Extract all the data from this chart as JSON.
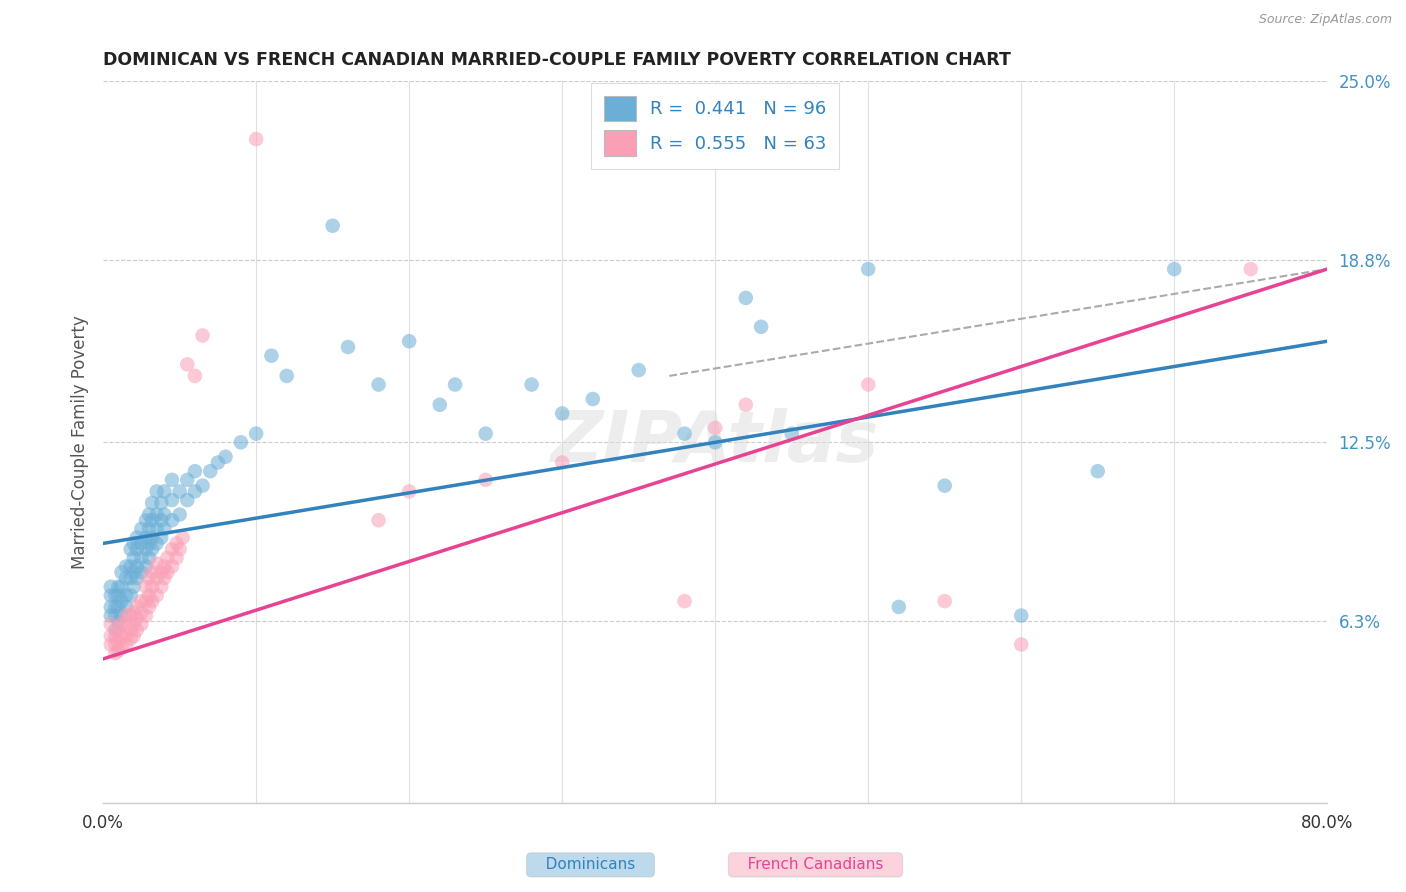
{
  "title": "DOMINICAN VS FRENCH CANADIAN MARRIED-COUPLE FAMILY POVERTY CORRELATION CHART",
  "source": "Source: ZipAtlas.com",
  "ylabel": "Married-Couple Family Poverty",
  "xlim": [
    0,
    0.8
  ],
  "ylim": [
    0,
    0.25
  ],
  "ytick_positions": [
    0.0,
    0.063,
    0.125,
    0.188,
    0.25
  ],
  "ytick_labels": [
    "",
    "6.3%",
    "12.5%",
    "18.8%",
    "25.0%"
  ],
  "dominican_color": "#6baed6",
  "french_color": "#fa9fb5",
  "dominican_line_color": "#3182bd",
  "french_line_color": "#e84393",
  "watermark": "ZIPAtlas",
  "legend_label1": "Dominicans",
  "legend_label2": "French Canadians",
  "dominican_scatter": [
    [
      0.005,
      0.065
    ],
    [
      0.005,
      0.068
    ],
    [
      0.005,
      0.072
    ],
    [
      0.005,
      0.075
    ],
    [
      0.008,
      0.06
    ],
    [
      0.008,
      0.065
    ],
    [
      0.008,
      0.068
    ],
    [
      0.008,
      0.072
    ],
    [
      0.01,
      0.063
    ],
    [
      0.01,
      0.068
    ],
    [
      0.01,
      0.072
    ],
    [
      0.01,
      0.075
    ],
    [
      0.012,
      0.065
    ],
    [
      0.012,
      0.07
    ],
    [
      0.012,
      0.075
    ],
    [
      0.012,
      0.08
    ],
    [
      0.015,
      0.068
    ],
    [
      0.015,
      0.072
    ],
    [
      0.015,
      0.078
    ],
    [
      0.015,
      0.082
    ],
    [
      0.018,
      0.072
    ],
    [
      0.018,
      0.078
    ],
    [
      0.018,
      0.082
    ],
    [
      0.018,
      0.088
    ],
    [
      0.02,
      0.075
    ],
    [
      0.02,
      0.08
    ],
    [
      0.02,
      0.085
    ],
    [
      0.02,
      0.09
    ],
    [
      0.022,
      0.078
    ],
    [
      0.022,
      0.082
    ],
    [
      0.022,
      0.088
    ],
    [
      0.022,
      0.092
    ],
    [
      0.025,
      0.08
    ],
    [
      0.025,
      0.085
    ],
    [
      0.025,
      0.09
    ],
    [
      0.025,
      0.095
    ],
    [
      0.028,
      0.082
    ],
    [
      0.028,
      0.088
    ],
    [
      0.028,
      0.092
    ],
    [
      0.028,
      0.098
    ],
    [
      0.03,
      0.085
    ],
    [
      0.03,
      0.09
    ],
    [
      0.03,
      0.095
    ],
    [
      0.03,
      0.1
    ],
    [
      0.032,
      0.088
    ],
    [
      0.032,
      0.092
    ],
    [
      0.032,
      0.098
    ],
    [
      0.032,
      0.104
    ],
    [
      0.035,
      0.09
    ],
    [
      0.035,
      0.095
    ],
    [
      0.035,
      0.1
    ],
    [
      0.035,
      0.108
    ],
    [
      0.038,
      0.092
    ],
    [
      0.038,
      0.098
    ],
    [
      0.038,
      0.104
    ],
    [
      0.04,
      0.095
    ],
    [
      0.04,
      0.1
    ],
    [
      0.04,
      0.108
    ],
    [
      0.045,
      0.098
    ],
    [
      0.045,
      0.105
    ],
    [
      0.045,
      0.112
    ],
    [
      0.05,
      0.1
    ],
    [
      0.05,
      0.108
    ],
    [
      0.055,
      0.105
    ],
    [
      0.055,
      0.112
    ],
    [
      0.06,
      0.108
    ],
    [
      0.06,
      0.115
    ],
    [
      0.065,
      0.11
    ],
    [
      0.07,
      0.115
    ],
    [
      0.075,
      0.118
    ],
    [
      0.08,
      0.12
    ],
    [
      0.09,
      0.125
    ],
    [
      0.1,
      0.128
    ],
    [
      0.11,
      0.155
    ],
    [
      0.12,
      0.148
    ],
    [
      0.15,
      0.2
    ],
    [
      0.16,
      0.158
    ],
    [
      0.18,
      0.145
    ],
    [
      0.2,
      0.16
    ],
    [
      0.22,
      0.138
    ],
    [
      0.23,
      0.145
    ],
    [
      0.25,
      0.128
    ],
    [
      0.28,
      0.145
    ],
    [
      0.3,
      0.135
    ],
    [
      0.32,
      0.14
    ],
    [
      0.35,
      0.15
    ],
    [
      0.38,
      0.128
    ],
    [
      0.4,
      0.125
    ],
    [
      0.42,
      0.175
    ],
    [
      0.43,
      0.165
    ],
    [
      0.45,
      0.128
    ],
    [
      0.5,
      0.185
    ],
    [
      0.52,
      0.068
    ],
    [
      0.55,
      0.11
    ],
    [
      0.6,
      0.065
    ],
    [
      0.65,
      0.115
    ],
    [
      0.7,
      0.185
    ]
  ],
  "french_scatter": [
    [
      0.005,
      0.055
    ],
    [
      0.005,
      0.058
    ],
    [
      0.005,
      0.062
    ],
    [
      0.008,
      0.052
    ],
    [
      0.008,
      0.055
    ],
    [
      0.008,
      0.058
    ],
    [
      0.01,
      0.053
    ],
    [
      0.01,
      0.056
    ],
    [
      0.01,
      0.06
    ],
    [
      0.012,
      0.054
    ],
    [
      0.012,
      0.058
    ],
    [
      0.012,
      0.062
    ],
    [
      0.015,
      0.055
    ],
    [
      0.015,
      0.058
    ],
    [
      0.015,
      0.062
    ],
    [
      0.015,
      0.065
    ],
    [
      0.018,
      0.057
    ],
    [
      0.018,
      0.06
    ],
    [
      0.018,
      0.065
    ],
    [
      0.02,
      0.058
    ],
    [
      0.02,
      0.062
    ],
    [
      0.02,
      0.066
    ],
    [
      0.022,
      0.06
    ],
    [
      0.022,
      0.064
    ],
    [
      0.022,
      0.068
    ],
    [
      0.025,
      0.062
    ],
    [
      0.025,
      0.066
    ],
    [
      0.025,
      0.07
    ],
    [
      0.028,
      0.065
    ],
    [
      0.028,
      0.07
    ],
    [
      0.028,
      0.075
    ],
    [
      0.03,
      0.068
    ],
    [
      0.03,
      0.072
    ],
    [
      0.03,
      0.078
    ],
    [
      0.032,
      0.07
    ],
    [
      0.032,
      0.075
    ],
    [
      0.032,
      0.08
    ],
    [
      0.035,
      0.072
    ],
    [
      0.035,
      0.078
    ],
    [
      0.035,
      0.083
    ],
    [
      0.038,
      0.075
    ],
    [
      0.038,
      0.08
    ],
    [
      0.04,
      0.078
    ],
    [
      0.04,
      0.082
    ],
    [
      0.042,
      0.08
    ],
    [
      0.042,
      0.085
    ],
    [
      0.045,
      0.082
    ],
    [
      0.045,
      0.088
    ],
    [
      0.048,
      0.085
    ],
    [
      0.048,
      0.09
    ],
    [
      0.05,
      0.088
    ],
    [
      0.052,
      0.092
    ],
    [
      0.055,
      0.152
    ],
    [
      0.06,
      0.148
    ],
    [
      0.065,
      0.162
    ],
    [
      0.1,
      0.23
    ],
    [
      0.18,
      0.098
    ],
    [
      0.2,
      0.108
    ],
    [
      0.25,
      0.112
    ],
    [
      0.3,
      0.118
    ],
    [
      0.38,
      0.07
    ],
    [
      0.4,
      0.13
    ],
    [
      0.42,
      0.138
    ],
    [
      0.5,
      0.145
    ],
    [
      0.55,
      0.07
    ],
    [
      0.6,
      0.055
    ],
    [
      0.75,
      0.185
    ]
  ],
  "dom_line_x": [
    0.0,
    0.8
  ],
  "dom_line_y": [
    0.09,
    0.16
  ],
  "fr_line_x": [
    0.0,
    0.8
  ],
  "fr_line_y": [
    0.05,
    0.185
  ],
  "dash_line_x": [
    0.37,
    0.8
  ],
  "dash_line_y": [
    0.148,
    0.185
  ]
}
